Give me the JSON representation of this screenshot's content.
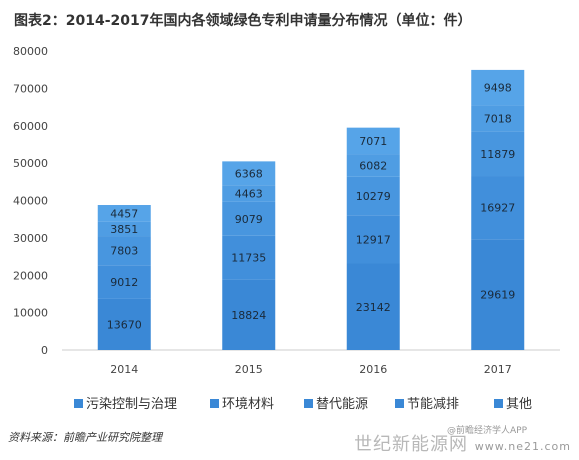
{
  "title": "图表2：2014-2017年国内各领域绿色专利申请量分布情况（单位：件）",
  "source": "资料来源：前瞻产业研究院整理",
  "watermark_main": "世纪新能源网",
  "watermark_url": "www.ne21.com",
  "watermark_small": "@前瞻经济学人APP",
  "chart_data": {
    "type": "bar",
    "stacked": true,
    "categories": [
      "2014",
      "2015",
      "2016",
      "2017"
    ],
    "series": [
      {
        "name": "污染控制与治理",
        "values": [
          13670,
          18824,
          23142,
          29619
        ]
      },
      {
        "name": "环境材料",
        "values": [
          9012,
          11735,
          12917,
          16927
        ]
      },
      {
        "name": "替代能源",
        "values": [
          7803,
          9079,
          10279,
          11879
        ]
      },
      {
        "name": "节能减排",
        "values": [
          3851,
          4463,
          6082,
          7018
        ]
      },
      {
        "name": "其他",
        "values": [
          4457,
          6368,
          7071,
          9498
        ]
      }
    ],
    "ylim": [
      0,
      80000
    ],
    "yticks": [
      0,
      10000,
      20000,
      30000,
      40000,
      50000,
      60000,
      70000,
      80000
    ],
    "grid": false,
    "legend": "bottom",
    "colors": [
      "#3a88d6",
      "#418fdb",
      "#4896df",
      "#4f9de3",
      "#56a4e8"
    ]
  }
}
